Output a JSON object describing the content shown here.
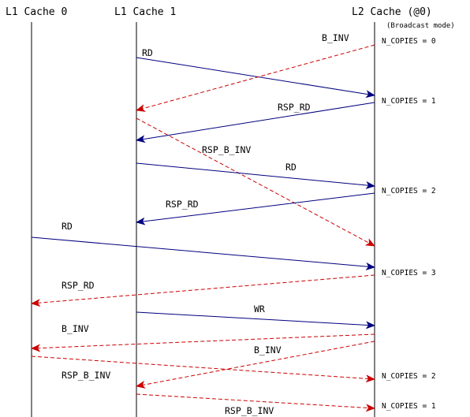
{
  "lanes": {
    "l1_cache_0": "L1 Cache 0",
    "l1_cache_1": "L1 Cache 1",
    "l2_cache": "L2 Cache (@0)"
  },
  "l2_mode_note": "(Broadcast mode)",
  "messages": {
    "rd_1": "RD",
    "b_inv_1": "B_INV",
    "rsp_rd_1": "RSP_RD",
    "rsp_b_inv_1": "RSP_B_INV",
    "rd_2": "RD",
    "rsp_rd_2": "RSP_RD",
    "rd_3": "RD",
    "rsp_rd_3": "RSP_RD",
    "wr_1": "WR",
    "b_inv_2": "B_INV",
    "b_inv_3": "B_INV",
    "rsp_b_inv_2": "RSP_B_INV",
    "rsp_b_inv_3": "RSP_B_INV"
  },
  "counter_notes": {
    "n_copies_0": "N_COPIES = 0",
    "n_copies_1": "N_COPIES = 1",
    "n_copies_2": "N_COPIES = 2",
    "n_copies_3": "N_COPIES = 3",
    "n_copies_2b": "N_COPIES = 2",
    "n_copies_1b": "N_COPIES = 1"
  },
  "colors": {
    "lifeline": "#000000",
    "request_arrow": "#00007f",
    "broadcast_arrow": "#cc0000"
  }
}
